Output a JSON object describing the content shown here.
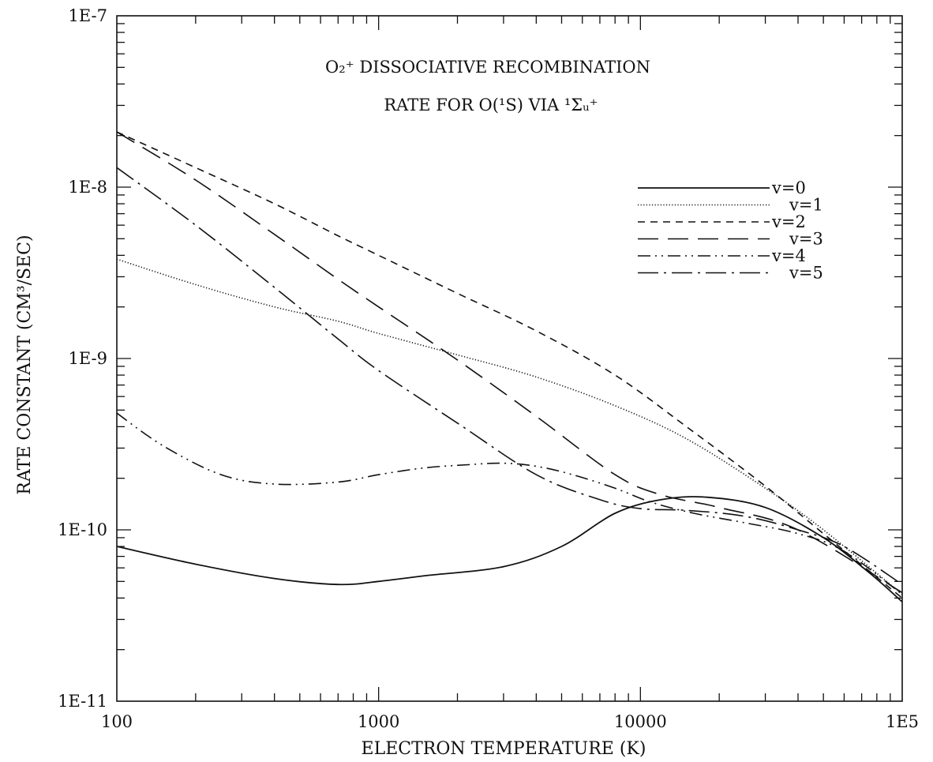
{
  "chart_data": {
    "type": "line",
    "title_line1": "O₂⁺ DISSOCIATIVE RECOMBINATION",
    "title_line2": "RATE FOR O(¹S) VIA ¹Σᵤ⁺",
    "xlabel": "ELECTRON TEMPERATURE (K)",
    "ylabel": "RATE CONSTANT (CM³/SEC)",
    "xscale": "log",
    "yscale": "log",
    "xlim": [
      100,
      100000
    ],
    "ylim": [
      1e-11,
      1e-07
    ],
    "x_tick_labels": [
      {
        "value": 100,
        "label": "100"
      },
      {
        "value": 1000,
        "label": "1000"
      },
      {
        "value": 10000,
        "label": "10000"
      },
      {
        "value": 100000,
        "label": "1E5"
      }
    ],
    "y_tick_labels": [
      {
        "value": 1e-07,
        "label": "1E-7"
      },
      {
        "value": 1e-08,
        "label": "1E-8"
      },
      {
        "value": 1e-09,
        "label": "1E-9"
      },
      {
        "value": 1e-10,
        "label": "1E-10"
      },
      {
        "value": 1e-11,
        "label": "1E-11"
      }
    ],
    "grid": false,
    "legend_position": "top-right",
    "series": [
      {
        "name": "v=0",
        "style": "solid",
        "x": [
          100,
          200,
          400,
          700,
          1000,
          1500,
          3000,
          5000,
          8000,
          12000,
          18000,
          30000,
          50000,
          75000,
          100000
        ],
        "y": [
          8e-11,
          6.3e-11,
          5.2e-11,
          4.8e-11,
          5e-11,
          5.4e-11,
          6.1e-11,
          8e-11,
          1.25e-10,
          1.5e-10,
          1.55e-10,
          1.35e-10,
          9e-11,
          5.6e-11,
          3.8e-11
        ]
      },
      {
        "name": "v=1",
        "style": "dotted",
        "x": [
          100,
          200,
          400,
          700,
          1000,
          2000,
          4000,
          8000,
          15000,
          30000,
          50000,
          100000
        ],
        "y": [
          3.8e-09,
          2.7e-09,
          2e-09,
          1.65e-09,
          1.4e-09,
          1.05e-09,
          7.8e-10,
          5.3e-10,
          3.4e-10,
          1.75e-10,
          1e-10,
          4.2e-11
        ]
      },
      {
        "name": "v=2",
        "style": "dashed",
        "x": [
          100,
          200,
          400,
          700,
          1000,
          2000,
          4000,
          8000,
          15000,
          30000,
          50000,
          100000
        ],
        "y": [
          2.1e-08,
          1.3e-08,
          8e-09,
          5.2e-09,
          4e-09,
          2.4e-09,
          1.45e-09,
          8e-10,
          4e-10,
          1.8e-10,
          9.5e-11,
          4e-11
        ]
      },
      {
        "name": "v=3",
        "style": "longdash",
        "x": [
          100,
          200,
          400,
          700,
          1000,
          2000,
          4000,
          8000,
          12000,
          20000,
          40000,
          100000
        ],
        "y": [
          2.1e-08,
          1.1e-08,
          5.3e-09,
          2.9e-09,
          2e-09,
          9.8e-10,
          4.6e-10,
          2.1e-10,
          1.6e-10,
          1.35e-10,
          1e-10,
          4.3e-11
        ]
      },
      {
        "name": "v=4",
        "style": "dashdotdot",
        "x": [
          100,
          150,
          250,
          400,
          700,
          1000,
          1500,
          2200,
          3000,
          4000,
          5500,
          8000,
          11000,
          16000,
          25000,
          40000,
          60000,
          100000
        ],
        "y": [
          4.8e-10,
          3.1e-10,
          2.1e-10,
          1.85e-10,
          1.9e-10,
          2.1e-10,
          2.3e-10,
          2.4e-10,
          2.45e-10,
          2.35e-10,
          2.1e-10,
          1.75e-10,
          1.45e-10,
          1.25e-10,
          1.1e-10,
          9.5e-11,
          7.5e-11,
          4.2e-11
        ]
      },
      {
        "name": "v=5",
        "style": "dashdot",
        "x": [
          100,
          200,
          400,
          700,
          1000,
          2000,
          4000,
          7000,
          10000,
          15000,
          25000,
          40000,
          60000,
          100000
        ],
        "y": [
          1.3e-08,
          6e-09,
          2.6e-09,
          1.3e-09,
          8.5e-10,
          4.2e-10,
          2.1e-10,
          1.5e-10,
          1.33e-10,
          1.3e-10,
          1.2e-10,
          1e-10,
          8e-11,
          4.8e-11
        ]
      }
    ]
  }
}
